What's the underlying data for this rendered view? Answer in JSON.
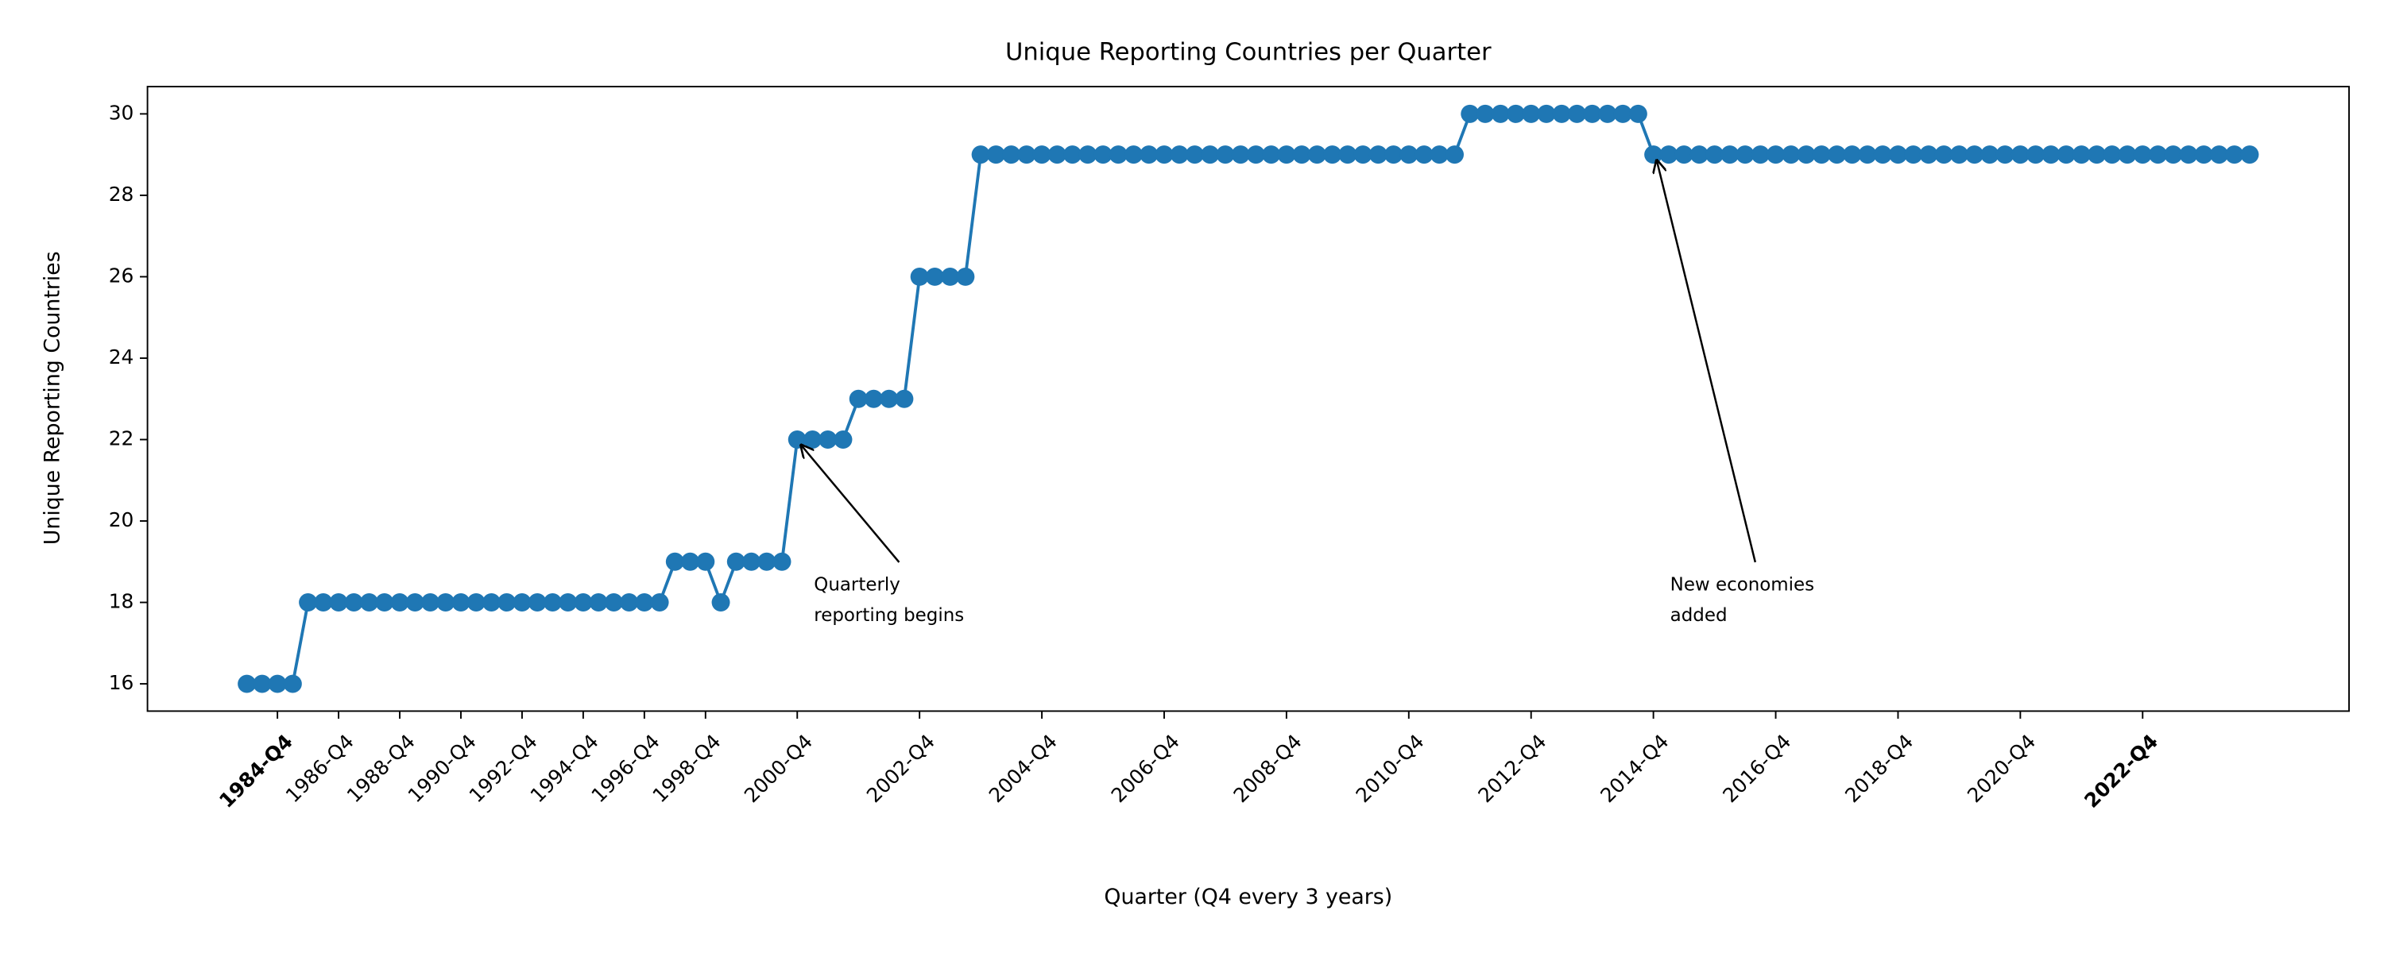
{
  "chart_data": {
    "type": "line",
    "title": "Unique Reporting Countries per Quarter",
    "x_label": "Quarter (Q4 every 3 years)",
    "y_label": "Unique Reporting Countries",
    "categories": [
      null,
      null,
      "1984-Q4",
      null,
      null,
      null,
      "1986-Q4",
      null,
      null,
      null,
      "1988-Q4",
      null,
      null,
      null,
      "1990-Q4",
      null,
      null,
      null,
      "1992-Q4",
      null,
      null,
      null,
      "1994-Q4",
      null,
      null,
      null,
      "1996-Q4",
      null,
      null,
      null,
      "1998-Q4",
      null,
      null,
      null,
      null,
      null,
      "2000-Q4",
      null,
      null,
      null,
      null,
      null,
      null,
      null,
      "2002-Q4",
      null,
      null,
      null,
      null,
      null,
      null,
      null,
      "2004-Q4",
      null,
      null,
      null,
      null,
      null,
      null,
      null,
      "2006-Q4",
      null,
      null,
      null,
      null,
      null,
      null,
      null,
      "2008-Q4",
      null,
      null,
      null,
      null,
      null,
      null,
      null,
      "2010-Q4",
      null,
      null,
      null,
      null,
      null,
      null,
      null,
      "2012-Q4",
      null,
      null,
      null,
      null,
      null,
      null,
      null,
      "2014-Q4",
      null,
      null,
      null,
      null,
      null,
      null,
      null,
      "2016-Q4",
      null,
      null,
      null,
      null,
      null,
      null,
      null,
      "2018-Q4",
      null,
      null,
      null,
      null,
      null,
      null,
      null,
      "2020-Q4",
      null,
      null,
      null,
      null,
      null,
      null,
      null,
      "2022-Q4",
      null,
      null,
      null,
      null,
      null,
      null,
      null
    ],
    "bold_categories": [
      2,
      124
    ],
    "series": [
      {
        "color": "#1f77b4",
        "values": [
          16,
          16,
          16,
          16,
          18,
          18,
          18,
          18,
          18,
          18,
          18,
          18,
          18,
          18,
          18,
          18,
          18,
          18,
          18,
          18,
          18,
          18,
          18,
          18,
          18,
          18,
          18,
          18,
          19,
          19,
          19,
          18,
          19,
          19,
          19,
          19,
          22,
          22,
          22,
          22,
          23,
          23,
          23,
          23,
          26,
          26,
          26,
          26,
          29,
          29,
          29,
          29,
          29,
          29,
          29,
          29,
          29,
          29,
          29,
          29,
          29,
          29,
          29,
          29,
          29,
          29,
          29,
          29,
          29,
          29,
          29,
          29,
          29,
          29,
          29,
          29,
          29,
          29,
          29,
          29,
          30,
          30,
          30,
          30,
          30,
          30,
          30,
          30,
          30,
          30,
          30,
          30,
          29,
          29,
          29,
          29,
          29,
          29,
          29,
          29,
          29,
          29,
          29,
          29,
          29,
          29,
          29,
          29,
          29,
          29,
          29,
          29,
          29,
          29,
          29,
          29,
          29,
          29,
          29,
          29,
          29,
          29,
          29,
          29,
          29,
          29,
          29,
          29,
          29,
          29,
          29,
          29
        ]
      }
    ],
    "ylim": [
      15.33,
      30.67
    ],
    "yticks": [
      16,
      18,
      20,
      22,
      24,
      26,
      28,
      30
    ],
    "annotations": [
      {
        "text": "Quarterly\nreporting begins",
        "point": 36
      },
      {
        "text": "New economies\nadded",
        "point": 92
      }
    ]
  }
}
